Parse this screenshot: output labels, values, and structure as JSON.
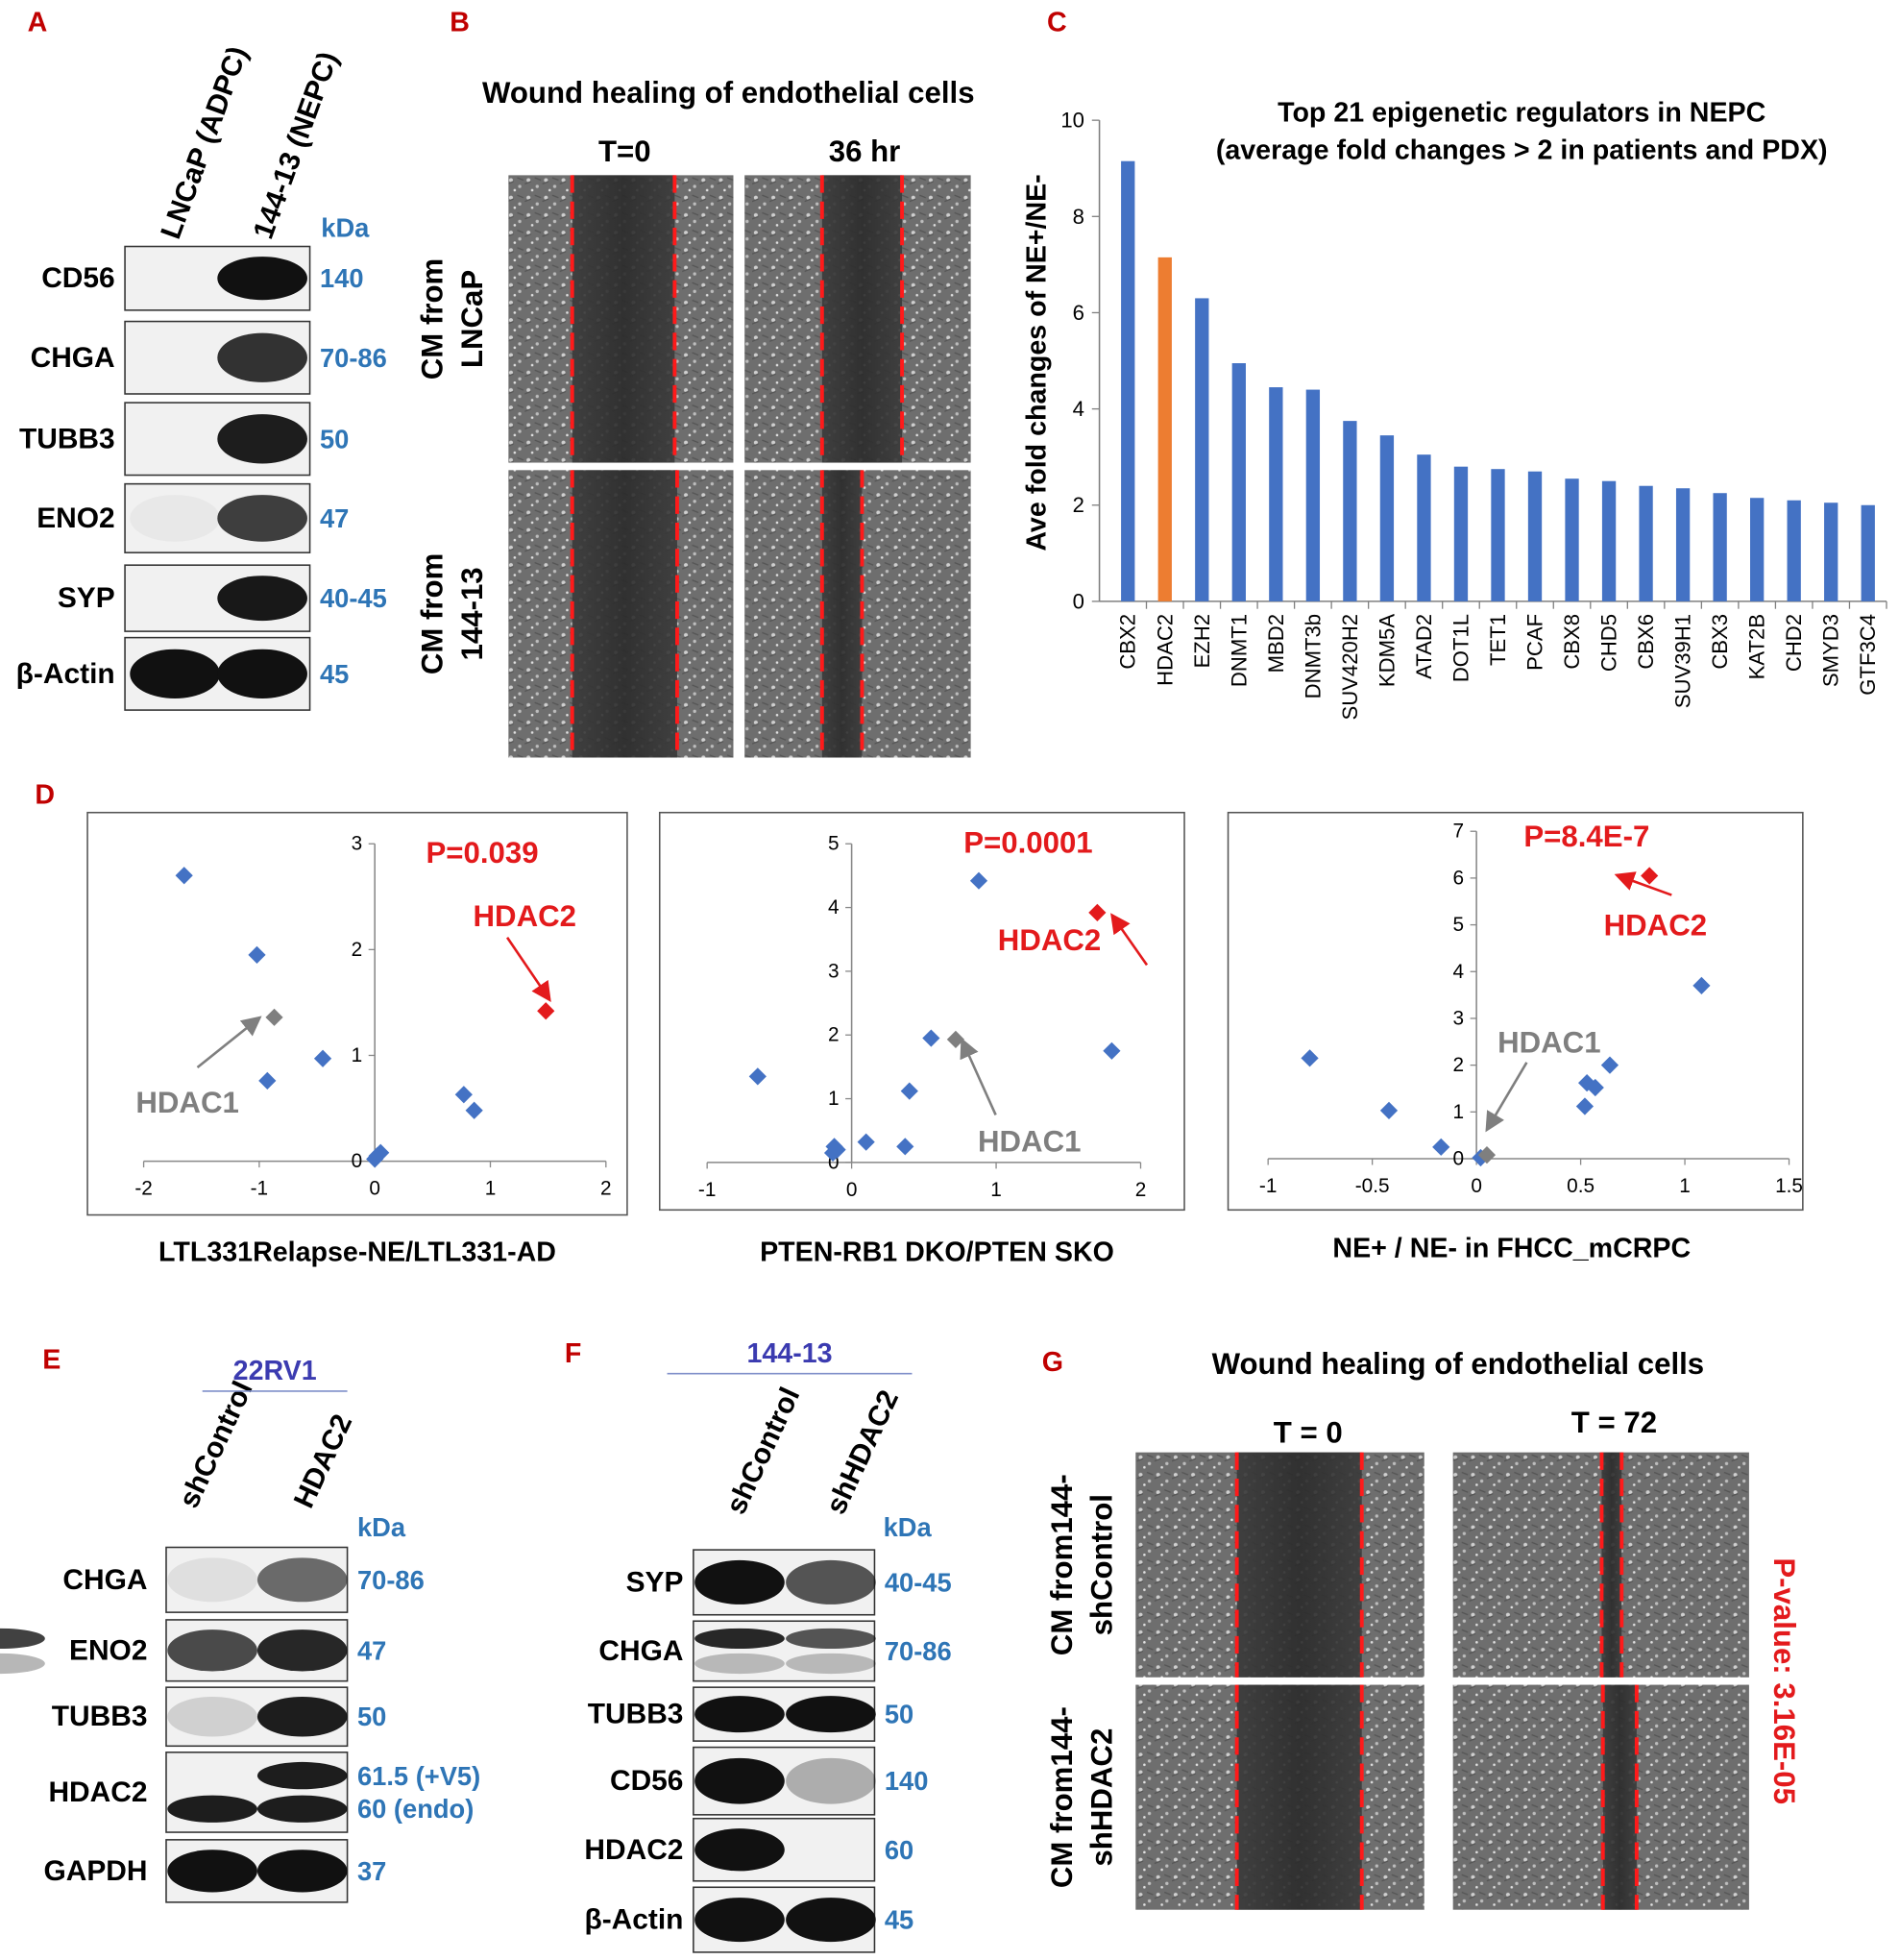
{
  "panels": {
    "A": {
      "letter": "A",
      "columns": [
        "LNCaP (ADPC)",
        "144-13 (NEPC)"
      ],
      "unit": "kDa",
      "rows": [
        {
          "label": "CD56",
          "kda": [
            "140"
          ]
        },
        {
          "label": "CHGA",
          "kda": [
            "70-86"
          ]
        },
        {
          "label": "TUBB3",
          "kda": [
            "50"
          ]
        },
        {
          "label": "ENO2",
          "kda": [
            "47"
          ]
        },
        {
          "label": "SYP",
          "kda": [
            "40-45"
          ]
        },
        {
          "label": "β-Actin",
          "kda": [
            "45"
          ]
        }
      ]
    },
    "B": {
      "letter": "B",
      "title": "Wound healing of endothelial cells",
      "columns": [
        "T=0",
        "36 hr"
      ],
      "rows": [
        [
          "CM from",
          "LNCaP"
        ],
        [
          "CM from",
          "144-13"
        ]
      ]
    },
    "C": {
      "letter": "C"
    },
    "D": {
      "letter": "D"
    },
    "E": {
      "letter": "E",
      "cell_line": "22RV1",
      "columns": [
        "shControl",
        "HDAC2"
      ],
      "unit": "kDa",
      "rows": [
        {
          "label": "CHGA",
          "kda": [
            "70-86"
          ]
        },
        {
          "label": "ENO2",
          "kda": [
            "47"
          ]
        },
        {
          "label": "TUBB3",
          "kda": [
            "50"
          ]
        },
        {
          "label": "HDAC2",
          "kda": [
            "61.5 (+V5)",
            "60 (endo)"
          ]
        },
        {
          "label": "GAPDH",
          "kda": [
            "37"
          ]
        }
      ]
    },
    "F": {
      "letter": "F",
      "cell_line": "144-13",
      "columns": [
        "shControl",
        "shHDAC2"
      ],
      "unit": "kDa",
      "rows": [
        {
          "label": "SYP",
          "kda": [
            "40-45"
          ]
        },
        {
          "label": "CHGA",
          "kda": [
            "70-86"
          ]
        },
        {
          "label": "TUBB3",
          "kda": [
            "50"
          ]
        },
        {
          "label": "CD56",
          "kda": [
            "140"
          ]
        },
        {
          "label": "HDAC2",
          "kda": [
            "60"
          ]
        },
        {
          "label": "β-Actin",
          "kda": [
            "45"
          ]
        }
      ]
    },
    "G": {
      "letter": "G",
      "title": "Wound healing of endothelial cells",
      "columns": [
        "T = 0",
        "T = 72"
      ],
      "rows": [
        [
          "CM from144-",
          "shControl"
        ],
        [
          "CM from144-",
          "shHDAC2"
        ]
      ],
      "p_value": "P-value: 3.16E-05"
    }
  },
  "chart_data": [
    {
      "type": "bar",
      "title": [
        "Top 21 epigenetic regulators in NEPC",
        "(average fold changes > 2 in patients and PDX)"
      ],
      "y_label": "Ave fold changes of NE+/NE-",
      "categories": [
        "CBX2",
        "HDAC2",
        "EZH2",
        "DNMT1",
        "MBD2",
        "DNMT3b",
        "SUV420H2",
        "KDM5A",
        "ATAD2",
        "DOT1L",
        "TET1",
        "PCAF",
        "CBX8",
        "CHD5",
        "CBX6",
        "SUV39H1",
        "CBX3",
        "KAT2B",
        "CHD2",
        "SMYD3",
        "GTF3C4"
      ],
      "values": [
        9.15,
        7.15,
        6.3,
        4.95,
        4.45,
        4.4,
        3.75,
        3.45,
        3.05,
        2.8,
        2.75,
        2.7,
        2.55,
        2.5,
        2.4,
        2.35,
        2.25,
        2.15,
        2.1,
        2.05,
        2.0
      ],
      "colors": [
        "#4472c4",
        "#ed7d31",
        "#4472c4",
        "#4472c4",
        "#4472c4",
        "#4472c4",
        "#4472c4",
        "#4472c4",
        "#4472c4",
        "#4472c4",
        "#4472c4",
        "#4472c4",
        "#4472c4",
        "#4472c4",
        "#4472c4",
        "#4472c4",
        "#4472c4",
        "#4472c4",
        "#4472c4",
        "#4472c4",
        "#4472c4"
      ],
      "ylim": [
        0,
        10
      ],
      "yticks": [
        0,
        2,
        4,
        6,
        8,
        10
      ]
    },
    {
      "type": "scatter",
      "x_label": "LTL331Relapse-NE/LTL331-AD",
      "annotation": "P=0.039",
      "xlim": [
        -2,
        2
      ],
      "xticks": [
        -2,
        -1,
        0,
        1,
        2
      ],
      "ylim": [
        0,
        3
      ],
      "yticks": [
        0,
        1,
        2,
        3
      ],
      "series": [
        {
          "color": "#4472c4",
          "x": [
            -1.65,
            -1.02,
            -0.93,
            -0.45,
            0.77,
            0.86,
            0.02,
            0.05,
            0.0
          ],
          "values": [
            2.7,
            1.95,
            0.76,
            0.97,
            0.63,
            0.48,
            0.05,
            0.08,
            0.02
          ]
        },
        {
          "name": "HDAC1",
          "color": "#7f7f7f",
          "x": [
            -0.87
          ],
          "values": [
            1.36
          ]
        },
        {
          "name": "HDAC2",
          "color": "#e31a1c",
          "x": [
            1.48
          ],
          "values": [
            1.42
          ]
        }
      ]
    },
    {
      "type": "scatter",
      "x_label": "PTEN-RB1 DKO/PTEN SKO",
      "annotation": "P=0.0001",
      "xlim": [
        -1,
        2
      ],
      "xticks": [
        -1,
        0,
        1,
        2
      ],
      "ylim": [
        0,
        5
      ],
      "yticks": [
        0,
        1,
        2,
        3,
        4,
        5
      ],
      "series": [
        {
          "color": "#4472c4",
          "x": [
            -0.65,
            -0.12,
            -0.1,
            0.1,
            0.37,
            0.4,
            0.55,
            0.88,
            1.8,
            -0.13
          ],
          "values": [
            1.35,
            0.25,
            0.2,
            0.32,
            0.25,
            1.12,
            1.95,
            4.42,
            1.75,
            0.15
          ]
        },
        {
          "name": "HDAC1",
          "color": "#7f7f7f",
          "x": [
            0.72
          ],
          "values": [
            1.93
          ]
        },
        {
          "name": "HDAC2",
          "color": "#e31a1c",
          "x": [
            1.7
          ],
          "values": [
            3.92
          ]
        }
      ]
    },
    {
      "type": "scatter",
      "x_label": "NE+ / NE- in FHCC_mCRPC",
      "annotation": "P=8.4E-7",
      "xlim": [
        -1,
        1.5
      ],
      "xticks": [
        -1,
        -0.5,
        0,
        0.5,
        1,
        1.5
      ],
      "ylim": [
        0,
        7
      ],
      "yticks": [
        0,
        1,
        2,
        3,
        4,
        5,
        6,
        7
      ],
      "series": [
        {
          "color": "#4472c4",
          "x": [
            -0.8,
            -0.42,
            -0.17,
            0.02,
            0.52,
            0.53,
            0.57,
            0.64,
            1.08
          ],
          "values": [
            2.15,
            1.03,
            0.25,
            0.02,
            1.12,
            1.62,
            1.52,
            2.0,
            3.7
          ]
        },
        {
          "name": "HDAC1",
          "color": "#7f7f7f",
          "x": [
            0.05
          ],
          "values": [
            0.08
          ]
        },
        {
          "name": "HDAC2",
          "color": "#e31a1c",
          "x": [
            0.83
          ],
          "values": [
            6.05
          ]
        }
      ]
    }
  ]
}
